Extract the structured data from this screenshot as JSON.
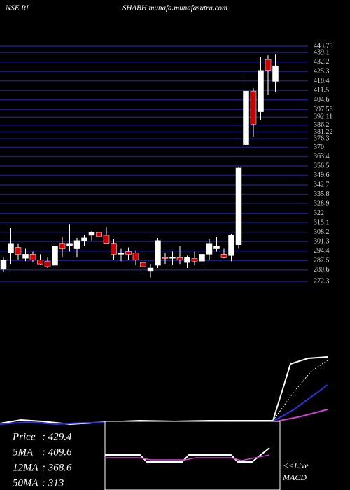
{
  "chart_data": {
    "type": "candlestick",
    "title_left": "NSE RI",
    "title": "SHABH munafa.munafasutra.com",
    "ylim": [
      272.3,
      443.75
    ],
    "yticks": [
      443.75,
      439.1,
      432.2,
      425.3,
      418.4,
      411.5,
      404.6,
      397.56,
      392.11,
      386.2,
      381.22,
      376.3,
      370,
      363.4,
      356.5,
      349.6,
      342.7,
      335.8,
      328.9,
      322,
      315.1,
      308.2,
      301.3,
      294.4,
      287.5,
      280.6,
      272.3
    ],
    "colors": {
      "up": "#ffffff",
      "down": "#cc0000",
      "grid": "#1c1c80"
    },
    "open": [
      281,
      293,
      297,
      289,
      292,
      288,
      287,
      284,
      300,
      298,
      296,
      302,
      306,
      308,
      306,
      300,
      292,
      294,
      293,
      286,
      280,
      284,
      290,
      289,
      290,
      286,
      289,
      287,
      292,
      296,
      292,
      291,
      299,
      372,
      411,
      396,
      434,
      418
    ],
    "high": [
      290,
      311,
      300,
      296,
      294,
      292,
      290,
      300,
      305,
      314,
      304,
      306,
      309,
      310,
      312,
      303,
      296,
      297,
      295,
      291,
      285,
      304,
      293,
      294,
      298,
      291,
      294,
      293,
      303,
      305,
      296,
      307,
      356,
      421,
      413,
      436,
      437,
      438
    ],
    "low": [
      279,
      285,
      288,
      287,
      286,
      284,
      282,
      282,
      290,
      294,
      290,
      298,
      302,
      303,
      301,
      288,
      287,
      288,
      284,
      281,
      275,
      282,
      285,
      284,
      285,
      282,
      284,
      283,
      288,
      294,
      289,
      287,
      296,
      370,
      378,
      390,
      408,
      410
    ],
    "close": [
      288,
      300,
      292,
      292,
      288,
      285,
      283,
      298,
      296,
      300,
      302,
      304,
      308,
      305,
      300,
      292,
      293,
      292,
      288,
      283,
      282,
      302,
      289,
      290,
      288,
      290,
      287,
      292,
      300,
      298,
      290,
      306,
      355,
      411,
      387,
      426,
      426,
      429.4
    ],
    "stats": [
      {
        "label": "Price",
        "value": 429.4,
        "value_label": ": 429.4"
      },
      {
        "label": "5MA",
        "value": 409.6,
        "value_label": ": 409.6"
      },
      {
        "label": "12MA",
        "value": 368.6,
        "value_label": ": 368.6"
      },
      {
        "label": "50MA",
        "value": 313,
        "value_label": ": 313"
      }
    ],
    "live_label": "<<Live",
    "macd_label": "MACD"
  }
}
